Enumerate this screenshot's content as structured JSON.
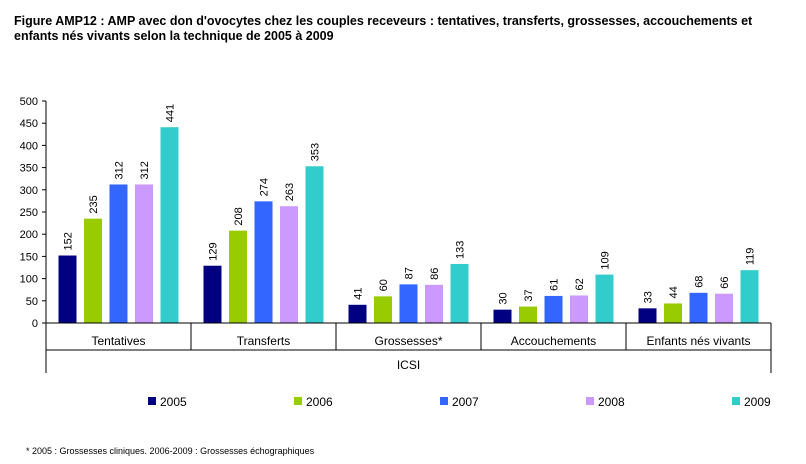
{
  "title": "Figure AMP12 : AMP avec don d'ovocytes chez les couples receveurs : tentatives, transferts, grossesses, accouchements et enfants nés vivants selon la technique de 2005 à 2009",
  "footnote": "* 2005 : Grossesses cliniques. 2006-2009 : Grossesses échographiques",
  "chart_data": {
    "type": "bar",
    "group_label": "ICSI",
    "categories": [
      "Tentatives",
      "Transferts",
      "Grossesses*",
      "Accouchements",
      "Enfants nés vivants"
    ],
    "series": [
      {
        "name": "2005",
        "color": "#000080",
        "values": [
          152,
          129,
          41,
          30,
          33
        ]
      },
      {
        "name": "2006",
        "color": "#99CC00",
        "values": [
          235,
          208,
          60,
          37,
          44
        ]
      },
      {
        "name": "2007",
        "color": "#3366FF",
        "values": [
          312,
          274,
          87,
          61,
          68
        ]
      },
      {
        "name": "2008",
        "color": "#CC99FF",
        "values": [
          312,
          263,
          86,
          62,
          66
        ]
      },
      {
        "name": "2009",
        "color": "#33CCCC",
        "values": [
          441,
          353,
          133,
          109,
          119
        ]
      }
    ],
    "ylim": [
      0,
      500
    ],
    "yticks": [
      0,
      50,
      100,
      150,
      200,
      250,
      300,
      350,
      400,
      450,
      500
    ],
    "grid": false,
    "legend_position": "bottom"
  }
}
